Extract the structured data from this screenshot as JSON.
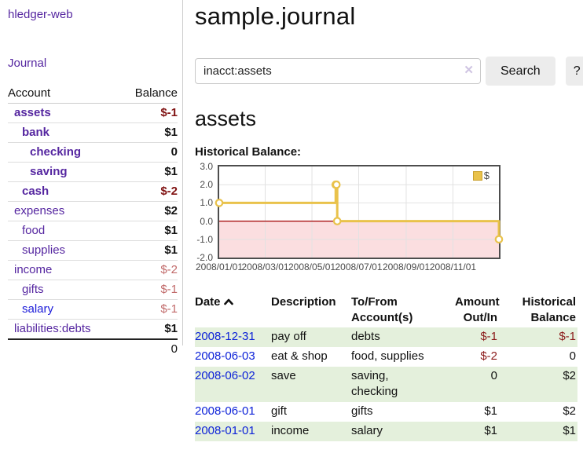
{
  "colors": {
    "link_purple": "#5526a0",
    "link_blue": "#1a1ad9",
    "negative_strong": "#801212",
    "negative_soft": "#c16a6a",
    "table_negative": "#8b1a1a",
    "row_stripe_green": "#e4f0dc",
    "chart_line_gold": "#e9c24b",
    "chart_negative_fill": "#fbdee0",
    "chart_zero_line": "#a00000"
  },
  "sidebar": {
    "brand": "hledger-web",
    "nav_journal": "Journal",
    "accounts_table": {
      "header_account": "Account",
      "header_balance": "Balance",
      "rows": [
        {
          "name": "assets",
          "indent": 1,
          "balance": "$-1",
          "bold": true,
          "negative": true,
          "link": "purple"
        },
        {
          "name": "bank",
          "indent": 2,
          "balance": "$1",
          "bold": true,
          "negative": false,
          "link": "purple"
        },
        {
          "name": "checking",
          "indent": 3,
          "balance": "0",
          "bold": true,
          "negative": false,
          "link": "purple"
        },
        {
          "name": "saving",
          "indent": 3,
          "balance": "$1",
          "bold": true,
          "negative": false,
          "link": "purple"
        },
        {
          "name": "cash",
          "indent": 2,
          "balance": "$-2",
          "bold": true,
          "negative": true,
          "link": "purple"
        },
        {
          "name": "expenses",
          "indent": 1,
          "balance": "$2",
          "bold": false,
          "negative": false,
          "link": "purple"
        },
        {
          "name": "food",
          "indent": 2,
          "balance": "$1",
          "bold": false,
          "negative": false,
          "link": "purple"
        },
        {
          "name": "supplies",
          "indent": 2,
          "balance": "$1",
          "bold": false,
          "negative": false,
          "link": "purple"
        },
        {
          "name": "income",
          "indent": 1,
          "balance": "$-2",
          "bold": false,
          "negative": true,
          "link": "purple"
        },
        {
          "name": "gifts",
          "indent": 2,
          "balance": "$-1",
          "bold": false,
          "negative": true,
          "link": "purple"
        },
        {
          "name": "salary",
          "indent": 2,
          "balance": "$-1",
          "bold": false,
          "negative": true,
          "link": "blue"
        },
        {
          "name": "liabilities:debts",
          "indent": 1,
          "balance": "$1",
          "bold": false,
          "negative": false,
          "link": "purple"
        }
      ],
      "total": "0"
    }
  },
  "main": {
    "title": "sample.journal",
    "search": {
      "value": "inacct:assets",
      "clear_icon": "✕",
      "button_label": "Search",
      "help_label": "?"
    },
    "account_heading": "assets",
    "chart_label": "Historical Balance:",
    "register_table": {
      "headers": {
        "date": "Date",
        "description": "Description",
        "tofrom_1": "To/From",
        "tofrom_2": "Account(s)",
        "amount_1": "Amount",
        "amount_2": "Out/In",
        "hist_1": "Historical",
        "hist_2": "Balance"
      },
      "rows": [
        {
          "date": "2008-12-31",
          "description": "pay off",
          "accounts_lines": [
            "debts"
          ],
          "amount": "$-1",
          "amount_negative": true,
          "balance": "$-1",
          "balance_negative": true
        },
        {
          "date": "2008-06-03",
          "description": "eat & shop",
          "accounts_lines": [
            "food, supplies"
          ],
          "amount": "$-2",
          "amount_negative": true,
          "balance": "0",
          "balance_negative": false
        },
        {
          "date": "2008-06-02",
          "description": "save",
          "accounts_lines": [
            "saving,",
            "checking"
          ],
          "amount": "0",
          "amount_negative": false,
          "balance": "$2",
          "balance_negative": false
        },
        {
          "date": "2008-06-01",
          "description": "gift",
          "accounts_lines": [
            "gifts"
          ],
          "amount": "$1",
          "amount_negative": false,
          "balance": "$2",
          "balance_negative": false
        },
        {
          "date": "2008-01-01",
          "description": "income",
          "accounts_lines": [
            "salary"
          ],
          "amount": "$1",
          "amount_negative": false,
          "balance": "$1",
          "balance_negative": false
        }
      ]
    }
  },
  "chart_data": {
    "type": "line",
    "title": "Historical Balance:",
    "x_domain": [
      "2008-01-01",
      "2008-12-31"
    ],
    "ylim": [
      -2,
      3
    ],
    "y_ticks": [
      3.0,
      2.0,
      1.0,
      0.0,
      -1.0,
      -2.0
    ],
    "x_ticks": [
      "2008/01/01",
      "2008/03/01",
      "2008/05/01",
      "2008/07/01",
      "2008/09/01",
      "2008/11/01"
    ],
    "grid": true,
    "legend": {
      "label": "$",
      "position": "top-right"
    },
    "series": [
      {
        "name": "$",
        "step": true,
        "points": [
          {
            "date": "2008-01-01",
            "value": 1
          },
          {
            "date": "2008-06-01",
            "value": 2
          },
          {
            "date": "2008-06-02",
            "value": 2
          },
          {
            "date": "2008-06-03",
            "value": 0
          },
          {
            "date": "2008-12-31",
            "value": -1
          }
        ]
      }
    ]
  }
}
